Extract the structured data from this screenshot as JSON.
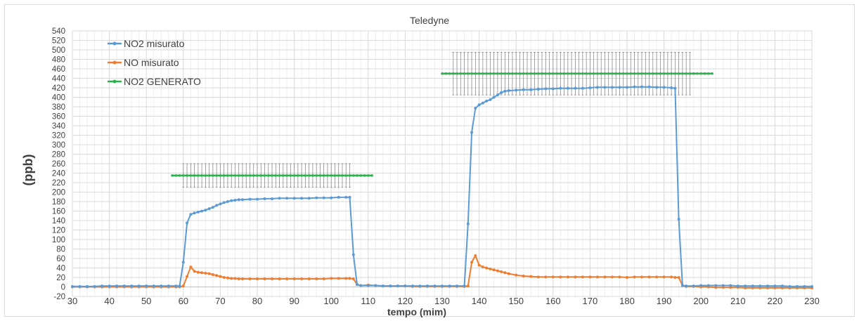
{
  "chart_data": {
    "type": "line",
    "title": "Teledyne",
    "xlabel": "tempo (mim)",
    "ylabel": "(ppb)",
    "xlim": [
      30,
      230
    ],
    "ylim": [
      -20,
      540
    ],
    "x_ticks": [
      30,
      40,
      50,
      60,
      70,
      80,
      90,
      100,
      110,
      120,
      130,
      140,
      150,
      160,
      170,
      180,
      190,
      200,
      210,
      220,
      230
    ],
    "y_ticks": [
      -20,
      0,
      20,
      40,
      60,
      80,
      100,
      120,
      140,
      160,
      180,
      200,
      220,
      240,
      260,
      280,
      300,
      320,
      340,
      360,
      380,
      400,
      420,
      440,
      460,
      480,
      500,
      520,
      540
    ],
    "grid": true,
    "legend_position": "top-left",
    "series": [
      {
        "name": "NO2 misurato",
        "color": "#5B9BD5",
        "x": [
          30,
          32,
          34,
          36,
          38,
          40,
          42,
          44,
          46,
          48,
          50,
          52,
          54,
          56,
          58,
          59,
          60,
          61,
          62,
          63,
          64,
          65,
          66,
          67,
          68,
          69,
          70,
          71,
          72,
          73,
          74,
          75,
          76,
          78,
          80,
          82,
          84,
          86,
          88,
          90,
          92,
          94,
          96,
          98,
          100,
          102,
          104,
          105,
          106,
          107,
          108,
          110,
          112,
          114,
          116,
          118,
          120,
          122,
          124,
          126,
          128,
          130,
          132,
          134,
          136,
          137,
          138,
          139,
          140,
          141,
          142,
          143,
          144,
          145,
          146,
          147,
          148,
          150,
          152,
          154,
          156,
          158,
          160,
          162,
          164,
          166,
          168,
          170,
          172,
          174,
          176,
          178,
          180,
          182,
          184,
          186,
          188,
          190,
          192,
          193,
          194,
          195,
          196,
          198,
          200,
          202,
          204,
          206,
          208,
          210,
          212,
          214,
          216,
          218,
          220,
          222,
          224,
          226,
          228,
          230
        ],
        "y": [
          1,
          1,
          1,
          1,
          2,
          2,
          2,
          2,
          2,
          2,
          2,
          2,
          2,
          2,
          2,
          2,
          52,
          135,
          153,
          156,
          158,
          160,
          162,
          165,
          168,
          172,
          175,
          178,
          180,
          182,
          183,
          184,
          184,
          185,
          185,
          186,
          186,
          187,
          187,
          187,
          187,
          187,
          188,
          188,
          188,
          189,
          189,
          189,
          68,
          5,
          3,
          3,
          3,
          2,
          2,
          2,
          2,
          2,
          2,
          2,
          2,
          2,
          2,
          2,
          2,
          133,
          326,
          377,
          384,
          388,
          392,
          395,
          400,
          405,
          410,
          413,
          414,
          415,
          416,
          416,
          417,
          418,
          418,
          419,
          419,
          419,
          419,
          420,
          421,
          421,
          421,
          421,
          421,
          422,
          422,
          422,
          421,
          421,
          420,
          419,
          143,
          3,
          2,
          2,
          3,
          3,
          3,
          3,
          3,
          2,
          2,
          2,
          2,
          2,
          2,
          2,
          1,
          1,
          1,
          1
        ]
      },
      {
        "name": "NO misurato",
        "color": "#ED7D31",
        "x": [
          30,
          32,
          34,
          36,
          38,
          40,
          42,
          44,
          46,
          48,
          50,
          52,
          54,
          56,
          58,
          59,
          60,
          61,
          62,
          63,
          64,
          65,
          66,
          67,
          68,
          69,
          70,
          71,
          72,
          73,
          74,
          75,
          76,
          78,
          80,
          82,
          84,
          86,
          88,
          90,
          92,
          94,
          96,
          98,
          100,
          102,
          104,
          105,
          106,
          107,
          108,
          110,
          112,
          114,
          116,
          118,
          120,
          122,
          124,
          126,
          128,
          130,
          132,
          134,
          136,
          137,
          138,
          139,
          140,
          141,
          142,
          143,
          144,
          145,
          146,
          147,
          148,
          150,
          152,
          154,
          156,
          158,
          160,
          162,
          164,
          166,
          168,
          170,
          172,
          174,
          176,
          178,
          180,
          182,
          184,
          186,
          188,
          190,
          192,
          193,
          194,
          195,
          196,
          198,
          200,
          202,
          204,
          206,
          208,
          210,
          212,
          214,
          216,
          218,
          220,
          222,
          224,
          226,
          228,
          230
        ],
        "y": [
          0,
          0,
          0,
          0,
          0,
          0,
          0,
          0,
          0,
          0,
          0,
          0,
          0,
          0,
          0,
          0,
          2,
          22,
          42,
          33,
          31,
          30,
          29,
          28,
          26,
          24,
          22,
          20,
          19,
          18,
          18,
          17,
          17,
          17,
          17,
          17,
          17,
          17,
          17,
          17,
          17,
          17,
          17,
          17,
          18,
          18,
          18,
          18,
          17,
          5,
          3,
          4,
          3,
          2,
          2,
          2,
          2,
          1,
          1,
          1,
          1,
          1,
          1,
          1,
          1,
          2,
          52,
          66,
          46,
          42,
          40,
          38,
          36,
          34,
          32,
          30,
          28,
          25,
          23,
          22,
          21,
          21,
          21,
          21,
          21,
          21,
          21,
          21,
          21,
          21,
          21,
          21,
          20,
          21,
          21,
          21,
          21,
          21,
          21,
          20,
          20,
          3,
          1,
          1,
          0,
          0,
          -1,
          -1,
          -1,
          -1,
          -2,
          -2,
          -2,
          -2,
          -2,
          -2,
          -2,
          -2,
          -2,
          -2
        ]
      },
      {
        "name": "NO2 GENERATO",
        "color": "#2BB24C",
        "segments": [
          {
            "x": [
              57,
              111
            ],
            "y": 235,
            "error": 25
          },
          {
            "x": [
              130,
              203
            ],
            "y": 450,
            "error": 45
          }
        ]
      }
    ]
  }
}
